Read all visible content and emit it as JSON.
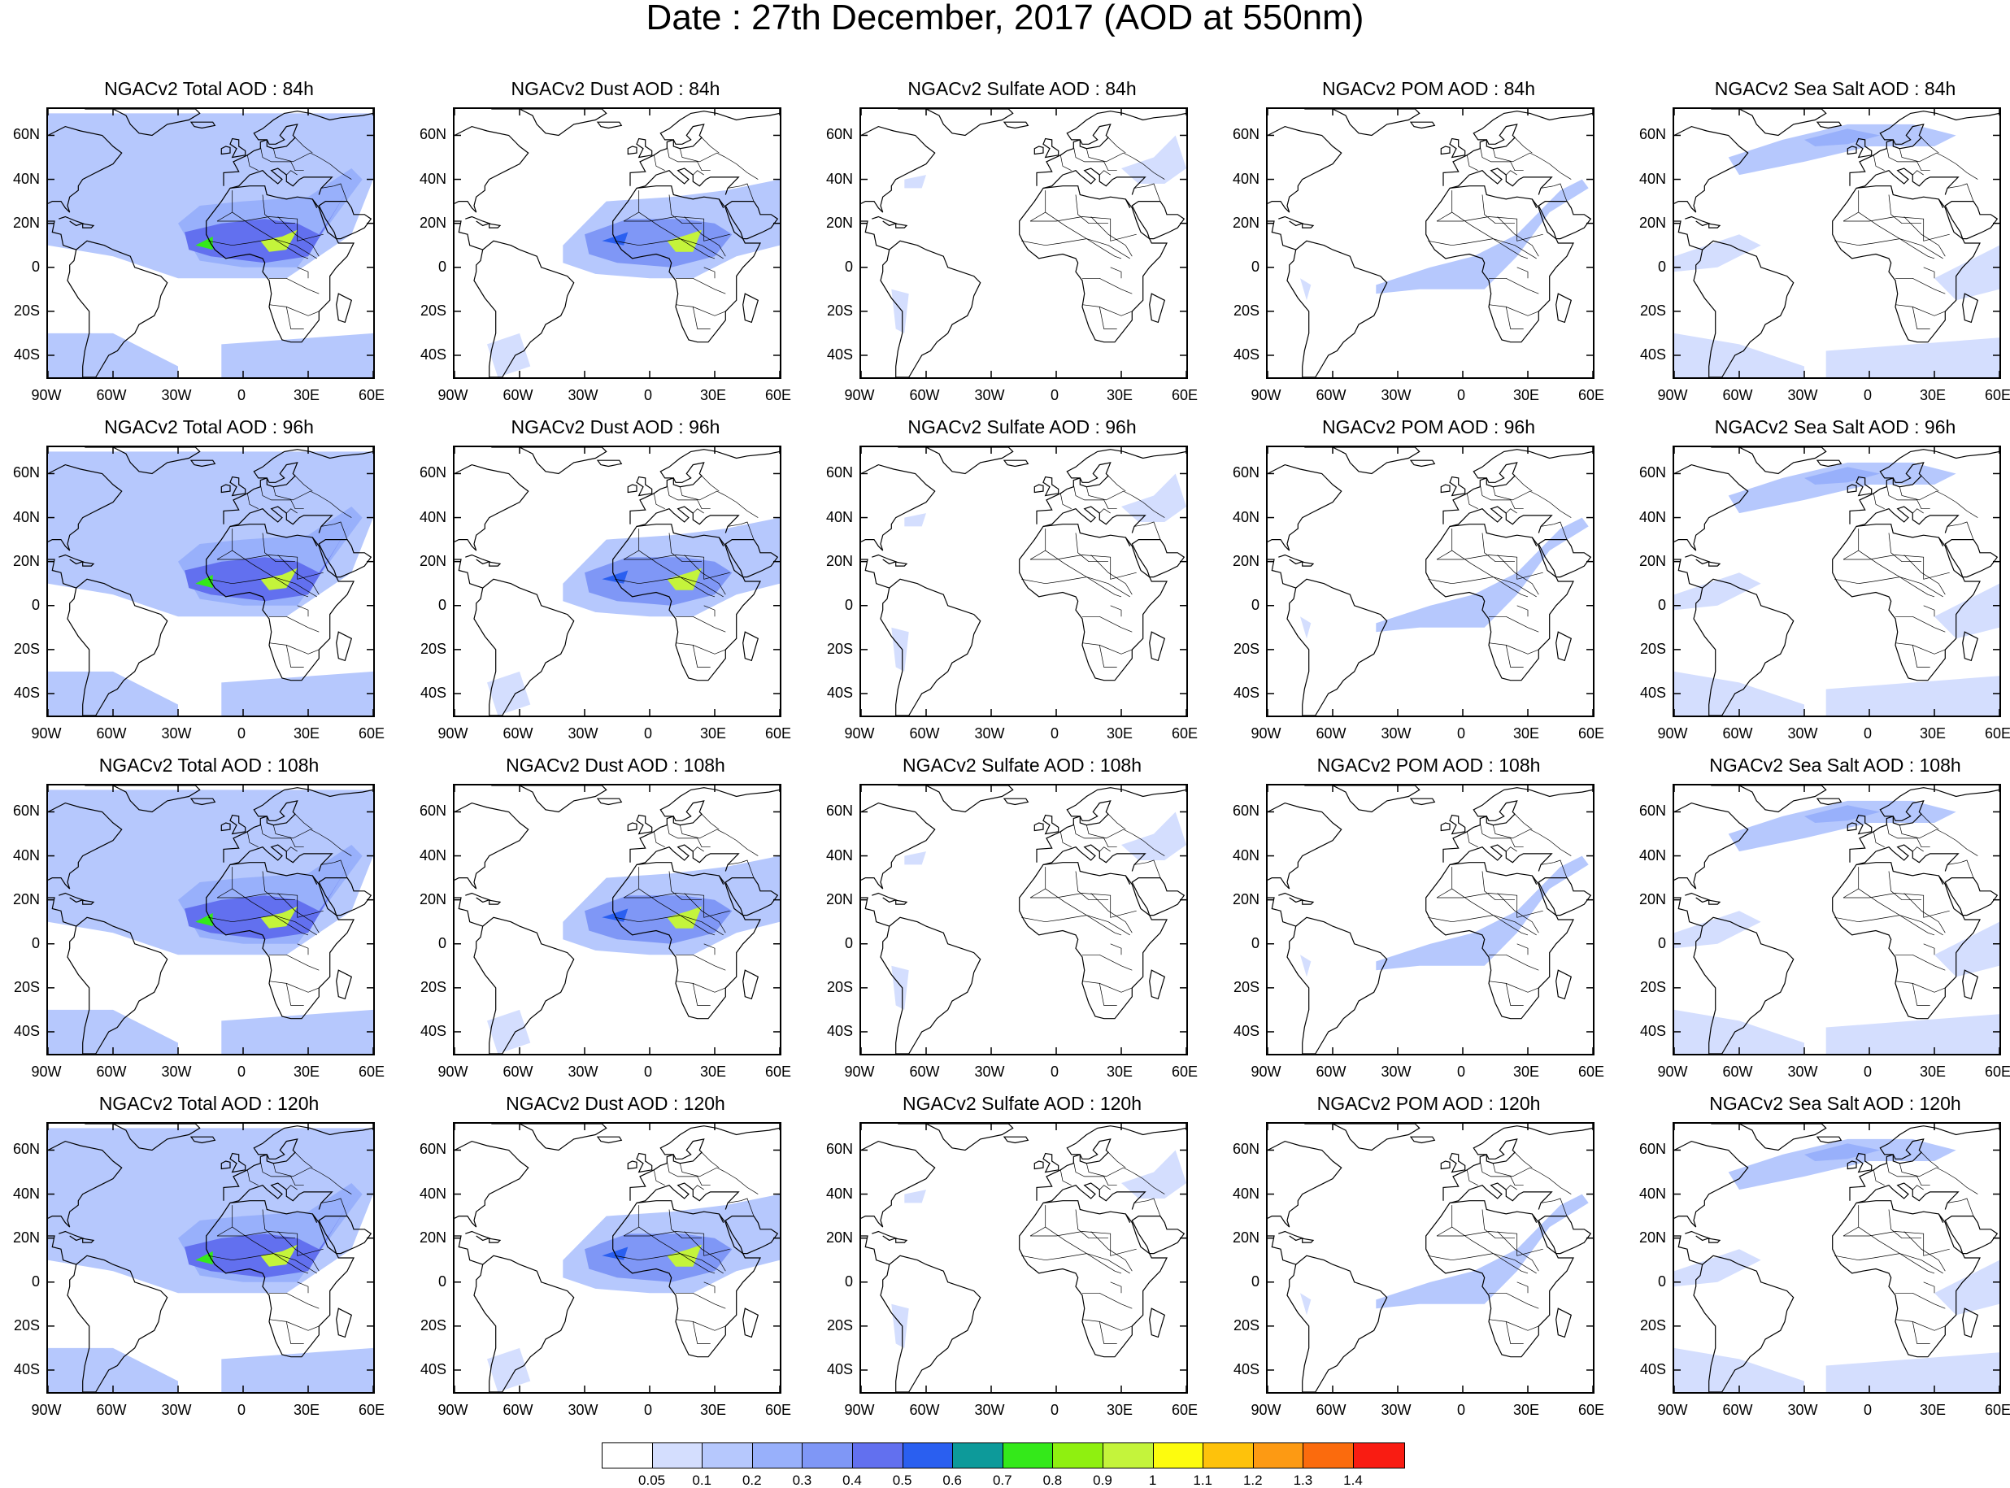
{
  "title": "Date : 27th December, 2017 (AOD at 550nm)",
  "row_hours": [
    "84h",
    "96h",
    "108h",
    "120h"
  ],
  "panel_titles": [
    [
      "NGACv2 Total AOD : 84h",
      "NGACv2 Dust AOD : 84h",
      "NGACv2 Sulfate AOD : 84h",
      "NGACv2 POM AOD : 84h",
      "NGACv2 Sea Salt AOD : 84h"
    ],
    [
      "NGACv2 Total AOD : 96h",
      "NGACv2 Dust AOD : 96h",
      "NGACv2 Sulfate AOD : 96h",
      "NGACv2 POM AOD : 96h",
      "NGACv2 Sea Salt AOD : 96h"
    ],
    [
      "NGACv2 Total AOD : 108h",
      "NGACv2 Dust AOD : 108h",
      "NGACv2 Sulfate AOD : 108h",
      "NGACv2 POM AOD : 108h",
      "NGACv2 Sea Salt AOD : 108h"
    ],
    [
      "NGACv2 Total AOD : 120h",
      "NGACv2 Dust AOD : 120h",
      "NGACv2 Sulfate AOD : 120h",
      "NGACv2 POM AOD : 120h",
      "NGACv2 Sea Salt  AOD : 120h"
    ]
  ],
  "species": [
    "total",
    "dust",
    "sulfate",
    "pom",
    "seasalt"
  ],
  "lat_ticks": [
    "60N",
    "40N",
    "20N",
    "0",
    "20S",
    "40S"
  ],
  "lat_values": [
    60,
    40,
    20,
    0,
    -20,
    -40
  ],
  "lon_ticks": [
    "90W",
    "60W",
    "30W",
    "0",
    "30E",
    "60E"
  ],
  "lon_values": [
    -90,
    -60,
    -30,
    0,
    30,
    60
  ],
  "map_extent": {
    "lon": [
      -90,
      60
    ],
    "lat": [
      -50,
      72
    ]
  },
  "colorbar": {
    "colors": [
      "#ffffff",
      "#d4defe",
      "#b6c8fd",
      "#98b0fb",
      "#7f97f6",
      "#6270ef",
      "#2a5ff0",
      "#0d9a9a",
      "#34e91a",
      "#8ff010",
      "#c4f43b",
      "#fdfc0e",
      "#fec20b",
      "#fd9a13",
      "#fb6b0d",
      "#f91c12"
    ],
    "labels": [
      "0.05",
      "0.1",
      "0.2",
      "0.3",
      "0.4",
      "0.5",
      "0.6",
      "0.7",
      "0.8",
      "0.9",
      "1",
      "1.1",
      "1.2",
      "1.3",
      "1.4"
    ]
  }
}
